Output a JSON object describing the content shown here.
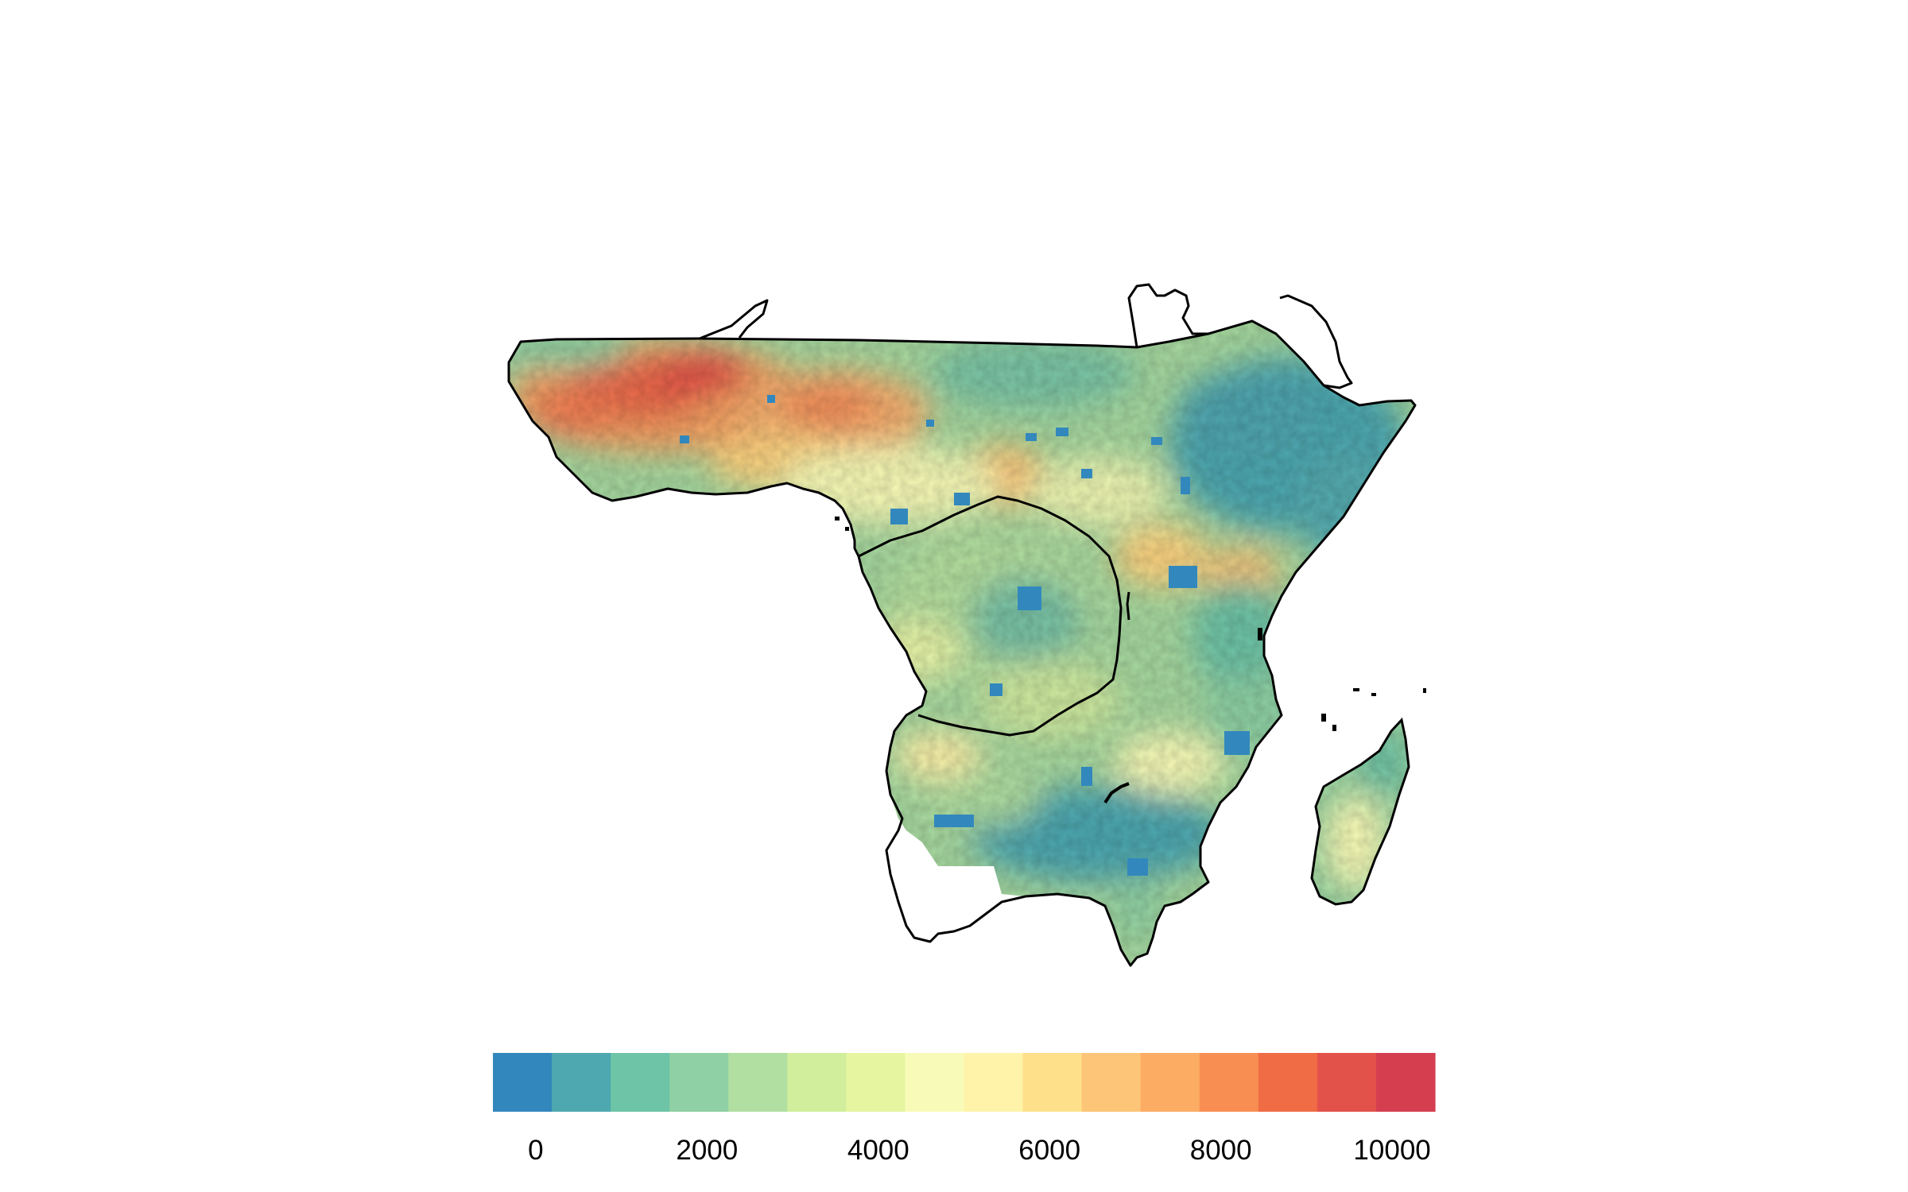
{
  "map": {
    "title": "",
    "region": "sub-Saharan Africa",
    "colorbar": {
      "bins": [
        "#3288bd",
        "#4da8b0",
        "#6ec4a7",
        "#8fd1a4",
        "#b1dfa2",
        "#d1ee9c",
        "#e6f5a0",
        "#f8fbb7",
        "#fff3aa",
        "#fee08b",
        "#fdc577",
        "#fdac64",
        "#f98e52",
        "#f06c45",
        "#e3524a",
        "#d53e4f"
      ],
      "min": -500,
      "max": 10500,
      "ticks": [
        {
          "value": 0,
          "label": "0"
        },
        {
          "value": 2000,
          "label": "2000"
        },
        {
          "value": 4000,
          "label": "4000"
        },
        {
          "value": 6000,
          "label": "6000"
        },
        {
          "value": 8000,
          "label": "8000"
        },
        {
          "value": 10000,
          "label": "10000"
        }
      ]
    },
    "colors": {
      "outline": "#000000",
      "low": "#3288bd",
      "high": "#d53e4f",
      "background": "#ffffff"
    }
  }
}
